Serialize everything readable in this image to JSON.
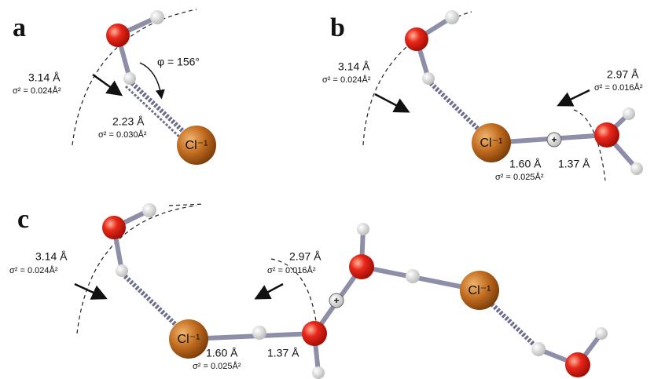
{
  "panels": [
    {
      "label": "a",
      "angle": "φ = 156°",
      "dist1": "3.14 Å",
      "sigma1": "σ² = 0.024Å²",
      "dist2": "2.23 Å",
      "sigma2": "σ² = 0.030Å²",
      "ion": "Cl⁻¹"
    },
    {
      "label": "b",
      "dist1": "3.14 Å",
      "sigma1": "σ² = 0.024Å²",
      "dist2": "2.97 Å",
      "sigma2": "σ² = 0.016Å²",
      "ion": "Cl⁻¹",
      "charge": "+",
      "dist3": "1.60 Å",
      "dist4": "1.37 Å",
      "sigma3": "σ² = 0.025Å²"
    },
    {
      "label": "c",
      "dist1": "3.14 Å",
      "sigma1": "σ² = 0.024Å²",
      "dist2": "2.97 Å",
      "sigma2": "σ² = 0.016Å²",
      "ion": "Cl⁻¹",
      "charge": "+",
      "dist3": "1.60 Å",
      "dist4": "1.37 Å",
      "sigma3": "σ² = 0.025Å²",
      "ion2": "Cl⁻¹"
    }
  ]
}
